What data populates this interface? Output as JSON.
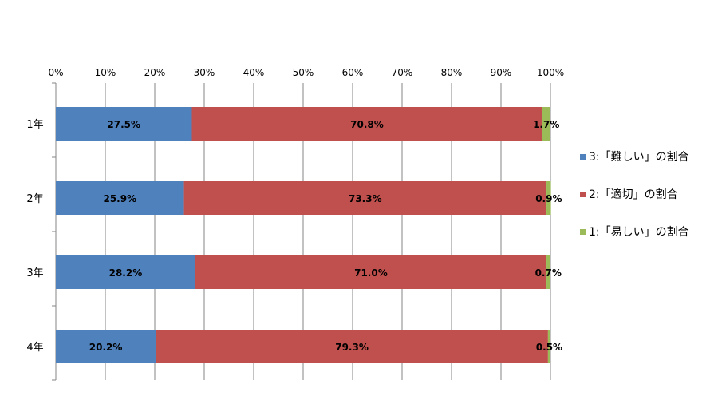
{
  "chart_data": {
    "type": "bar",
    "orientation": "horizontal",
    "stacked": true,
    "percent": true,
    "categories": [
      "1年",
      "2年",
      "3年",
      "4年"
    ],
    "series": [
      {
        "name": "3:「難しい」の割合",
        "color": "#4F81BD",
        "values": [
          27.5,
          25.9,
          28.2,
          20.2
        ],
        "labels": [
          "27.5%",
          "25.9%",
          "28.2%",
          "20.2%"
        ]
      },
      {
        "name": "2:「適切」の割合",
        "color": "#C0504D",
        "values": [
          70.8,
          73.3,
          71.0,
          79.3
        ],
        "labels": [
          "70.8%",
          "73.3%",
          "71.0%",
          "79.3%"
        ]
      },
      {
        "name": "1:「易しい」の割合",
        "color": "#9BBB59",
        "values": [
          1.7,
          0.9,
          0.7,
          0.5
        ],
        "labels": [
          "1.7%",
          "0.9%",
          "0.7%",
          "0.5%"
        ]
      }
    ],
    "xaxis": {
      "position": "top",
      "ticks": [
        "0%",
        "10%",
        "20%",
        "30%",
        "40%",
        "50%",
        "60%",
        "70%",
        "80%",
        "90%",
        "100%"
      ],
      "xlim": [
        0,
        100
      ]
    },
    "grid": true,
    "legend": "right"
  }
}
